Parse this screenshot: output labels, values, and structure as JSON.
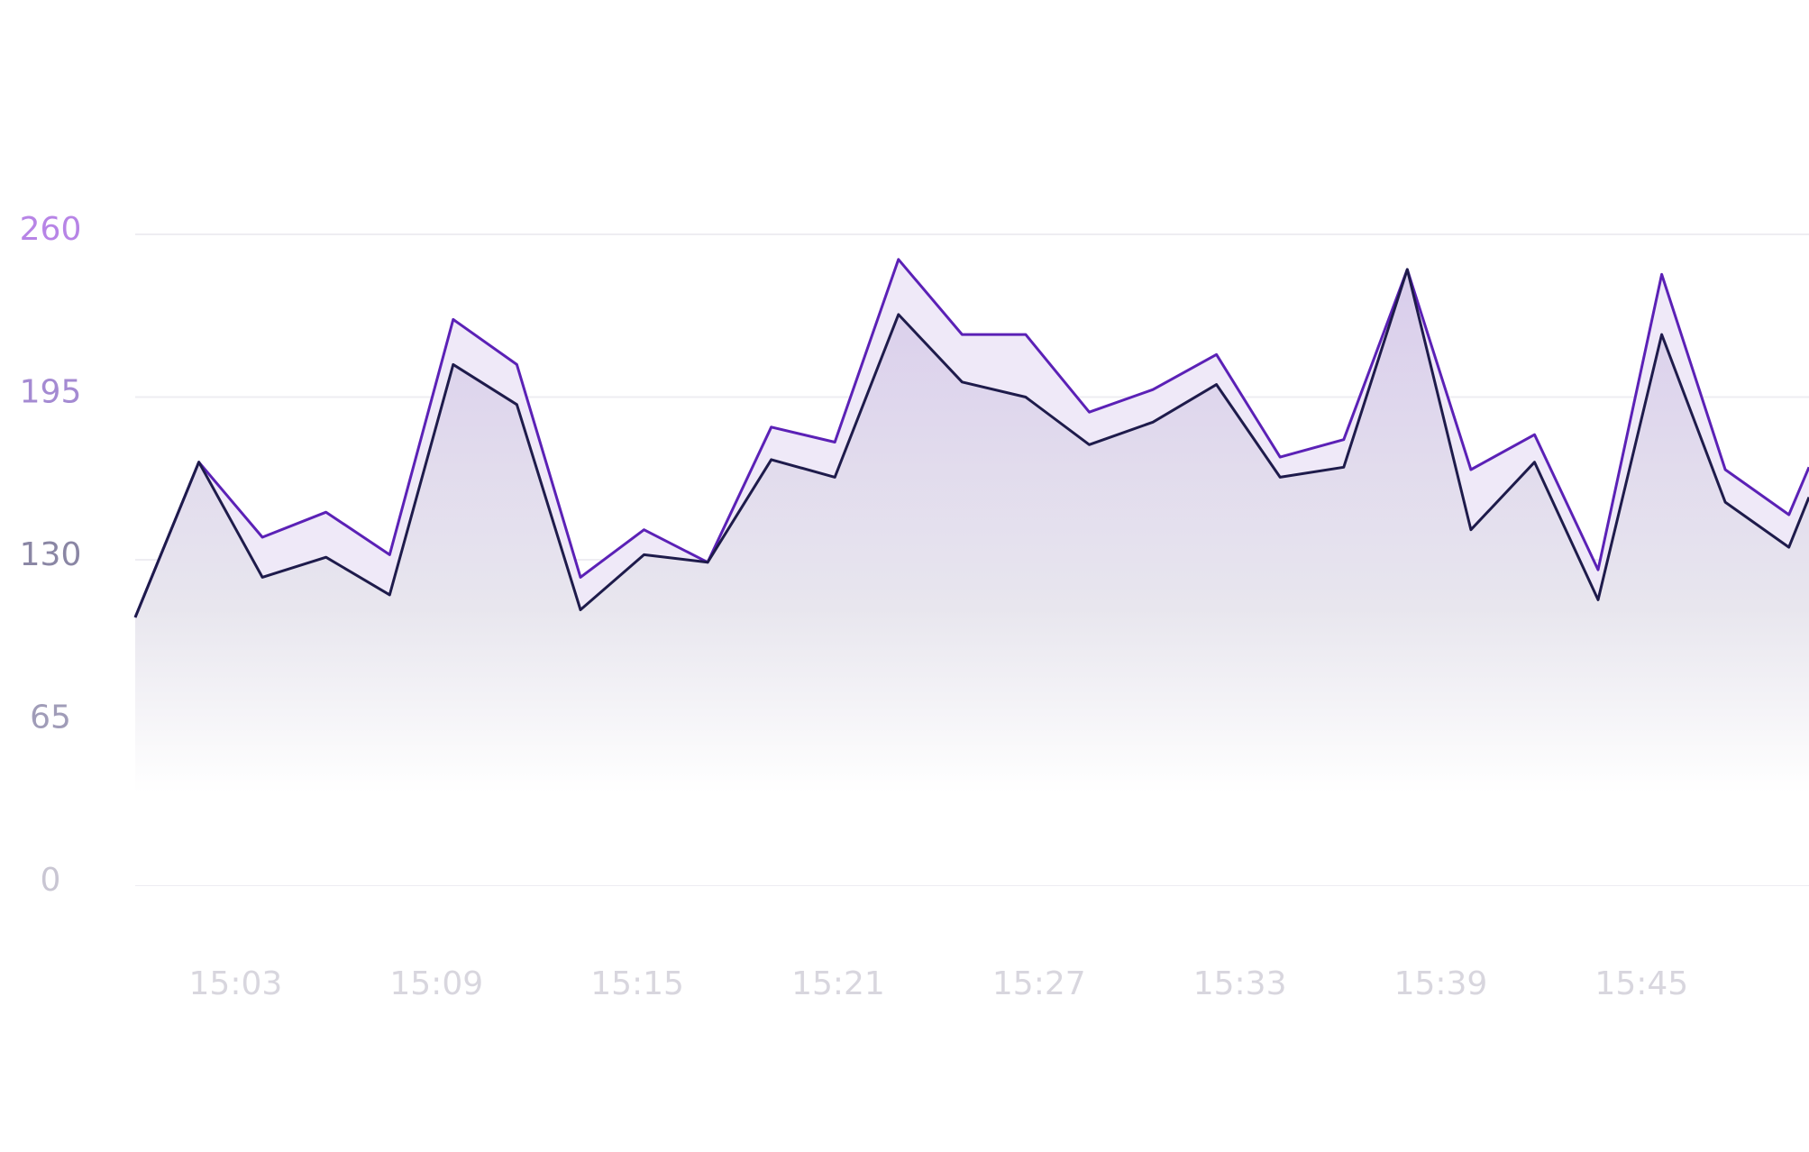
{
  "chart_data": {
    "type": "area",
    "x": [
      0,
      1.9,
      3.8,
      5.7,
      7.6,
      9.5,
      11.4,
      13.3,
      15.2,
      17.1,
      19,
      20.9,
      22.8,
      24.7,
      26.6,
      28.5,
      30.4,
      32.3,
      34.2,
      36.1,
      38,
      39.9,
      41.8,
      43.7,
      45.6,
      47.5,
      49.4,
      50
    ],
    "series": [
      {
        "color": "#5b21b6",
        "values": [
          107,
          169,
          139,
          149,
          132,
          226,
          208,
          123,
          142,
          129,
          183,
          177,
          250,
          220,
          220,
          189,
          198,
          212,
          171,
          178,
          246,
          166,
          180,
          126,
          244,
          166,
          148,
          167
        ]
      },
      {
        "color": "#1e1b4b",
        "values": [
          107,
          169,
          123,
          131,
          116,
          208,
          192,
          110,
          132,
          129,
          170,
          163,
          228,
          201,
          195,
          176,
          185,
          200,
          163,
          167,
          246,
          142,
          169,
          114,
          220,
          153,
          135,
          155
        ]
      }
    ],
    "xlim": [
      0,
      50
    ],
    "xticks": [
      {
        "value": 3,
        "label": "15:03"
      },
      {
        "value": 9,
        "label": "15:09"
      },
      {
        "value": 15,
        "label": "15:15"
      },
      {
        "value": 21,
        "label": "15:21"
      },
      {
        "value": 27,
        "label": "15:27"
      },
      {
        "value": 33,
        "label": "15:33"
      },
      {
        "value": 39,
        "label": "15:39"
      },
      {
        "value": 45,
        "label": "15:45"
      }
    ],
    "ylim": [
      0,
      260
    ],
    "yticks": [
      0,
      65,
      130,
      195,
      260
    ],
    "grid": true
  }
}
